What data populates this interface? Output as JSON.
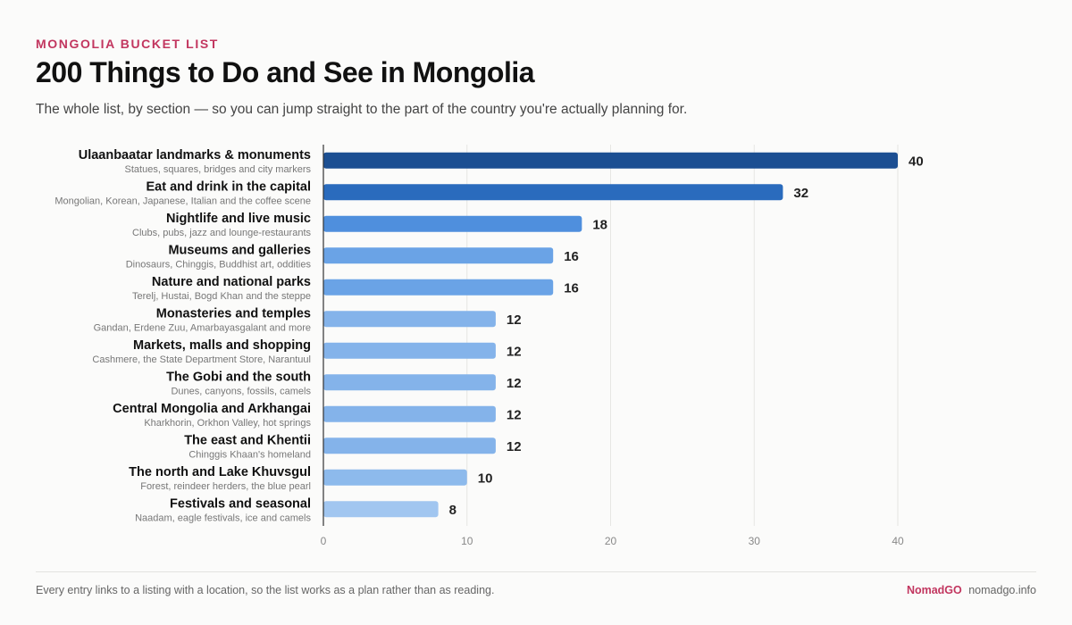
{
  "header": {
    "kicker": "MONGOLIA BUCKET LIST",
    "title": "200 Things to Do and See in Mongolia",
    "subtitle": "The whole list, by section — so you can jump straight to the part of the country you're actually planning for."
  },
  "chart_data": {
    "type": "bar",
    "orientation": "horizontal",
    "categories": [
      "Ulaanbaatar landmarks & monuments",
      "Eat and drink in the capital",
      "Nightlife and live music",
      "Museums and galleries",
      "Nature and national parks",
      "Monasteries and temples",
      "Markets, malls and shopping",
      "The Gobi and the south",
      "Central Mongolia and Arkhangai",
      "The east and Khentii",
      "The north and Lake Khuvsgul",
      "Festivals and seasonal"
    ],
    "descriptions": [
      "Statues, squares, bridges and city markers",
      "Mongolian, Korean, Japanese, Italian and the coffee scene",
      "Clubs, pubs, jazz and lounge-restaurants",
      "Dinosaurs, Chinggis, Buddhist art, oddities",
      "Terelj, Hustai, Bogd Khan and the steppe",
      "Gandan, Erdene Zuu, Amarbayasgalant and more",
      "Cashmere, the State Department Store, Narantuul",
      "Dunes, canyons, fossils, camels",
      "Kharkhorin, Orkhon Valley, hot springs",
      "Chinggis Khaan's homeland",
      "Forest, reindeer herders, the blue pearl",
      "Naadam, eagle festivals, ice and camels"
    ],
    "values": [
      40,
      32,
      18,
      16,
      16,
      12,
      12,
      12,
      12,
      12,
      10,
      8
    ],
    "colors": [
      "#1c4f92",
      "#2a6bbd",
      "#4f8fdd",
      "#6aa3e6",
      "#6aa3e6",
      "#84b3ea",
      "#84b3ea",
      "#84b3ea",
      "#84b3ea",
      "#84b3ea",
      "#8dbaec",
      "#a1c6f0"
    ],
    "xlim": [
      0,
      40
    ],
    "xticks": [
      0,
      10,
      20,
      30,
      40
    ],
    "grid": true,
    "data_labels": true,
    "title": "",
    "xlabel": "",
    "ylabel": ""
  },
  "footer": {
    "note": "Every entry links to a listing with a location, so the list works as a plan rather than as reading.",
    "brand": "NomadGO",
    "url": "nomadgo.info"
  }
}
